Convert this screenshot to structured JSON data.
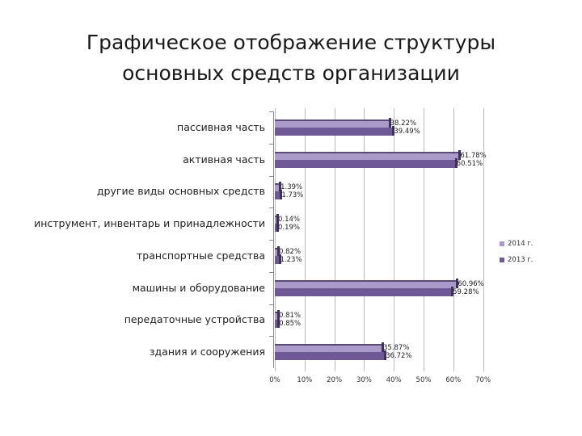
{
  "title_line1": "Графическое отображение структуры",
  "title_line2": "основных средств организации",
  "chart_data": {
    "type": "bar",
    "orientation": "horizontal",
    "title": "Графическое отображение структуры основных средств организации",
    "categories": [
      "пассивная часть",
      "активная часть",
      "другие виды основных средств",
      "инструмент, инвентарь и принадлежности",
      "транспортные средства",
      "машины и оборудование",
      "передаточные устройства",
      "здания и сооружения"
    ],
    "series": [
      {
        "name": "2014 г.",
        "color": "#a99ac9",
        "values": [
          38.22,
          61.78,
          1.39,
          0.14,
          0.82,
          60.96,
          0.81,
          35.87
        ],
        "labels": [
          "38.22%",
          "61.78%",
          "1.39%",
          "0.14%",
          "0.82%",
          "60.96%",
          "0.81%",
          "35.87%"
        ]
      },
      {
        "name": "2013 г.",
        "color": "#6e5896",
        "values": [
          39.49,
          60.51,
          1.73,
          0.19,
          1.23,
          59.28,
          0.85,
          36.72
        ],
        "labels": [
          "39.49%",
          "60.51%",
          "1.73%",
          "0.19%",
          "1.23%",
          "59.28%",
          "0.85%",
          "36.72%"
        ]
      }
    ],
    "xlim": [
      0,
      70
    ],
    "xticks": [
      "0%",
      "10%",
      "20%",
      "30%",
      "40%",
      "50%",
      "60%",
      "70%"
    ],
    "grid": true,
    "legend_position": "right",
    "xlabel": "",
    "ylabel": ""
  },
  "legend": [
    "2014 г.",
    "2013 г."
  ]
}
